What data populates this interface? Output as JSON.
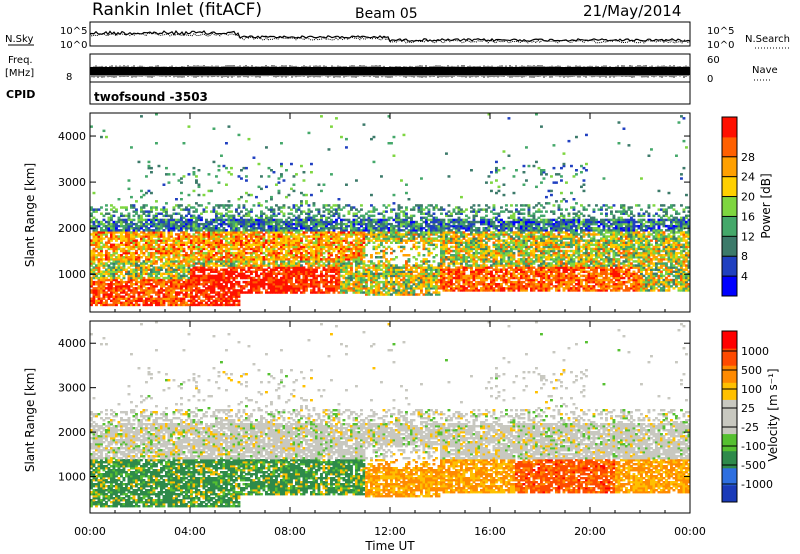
{
  "header": {
    "title": "Rankin Inlet (fitACF)",
    "beam": "Beam 05",
    "date": "21/May/2014"
  },
  "noise_panel": {
    "left_label": "N.Sky",
    "right_label": "N.Search",
    "ticks": [
      "10^5",
      "10^0"
    ]
  },
  "freq_panel": {
    "left_label_1": "Freq.",
    "left_label_2": "[MHz]",
    "right_label": "Nave",
    "left_ticks": [
      "8"
    ],
    "right_ticks": [
      "60",
      "0"
    ]
  },
  "cpid": {
    "label": "CPID",
    "value": "twofsound -3503"
  },
  "chart_data": [
    {
      "type": "heatmap",
      "name": "power",
      "ylabel": "Slant Range [km]",
      "xlabel": "",
      "x_ticks": [
        "00:00",
        "04:00",
        "08:00",
        "12:00",
        "16:00",
        "20:00",
        "00:00"
      ],
      "y_ticks": [
        "1000",
        "2000",
        "3000",
        "4000"
      ],
      "ylim": [
        180,
        4500
      ],
      "xlim_hours": [
        0,
        24
      ],
      "colorbar": {
        "label": "Power [dB]",
        "ticks": [
          "4",
          "8",
          "12",
          "16",
          "20",
          "24",
          "28"
        ],
        "colors": [
          "#0000ff",
          "#2040c0",
          "#3c7a6a",
          "#44a86a",
          "#7ed640",
          "#ffd000",
          "#ffa000",
          "#ff6000",
          "#ff1000"
        ]
      }
    },
    {
      "type": "heatmap",
      "name": "velocity",
      "ylabel": "Slant Range [km]",
      "xlabel": "Time UT",
      "x_ticks": [
        "00:00",
        "04:00",
        "08:00",
        "12:00",
        "16:00",
        "20:00",
        "00:00"
      ],
      "y_ticks": [
        "1000",
        "2000",
        "3000",
        "4000"
      ],
      "ylim": [
        180,
        4500
      ],
      "xlim_hours": [
        0,
        24
      ],
      "colorbar": {
        "label": "Velocity [m s⁻¹]",
        "ticks": [
          "1000",
          "500",
          "100",
          "25",
          "-25",
          "-100",
          "-500",
          "-1000"
        ],
        "colors": [
          "#1a3ab8",
          "#2e6fe0",
          "#2e8a4a",
          "#55c030",
          "#c8c8c0",
          "#c8c8c0",
          "#ffc000",
          "#ff8a00",
          "#ff4a00",
          "#ff0000"
        ]
      }
    }
  ]
}
